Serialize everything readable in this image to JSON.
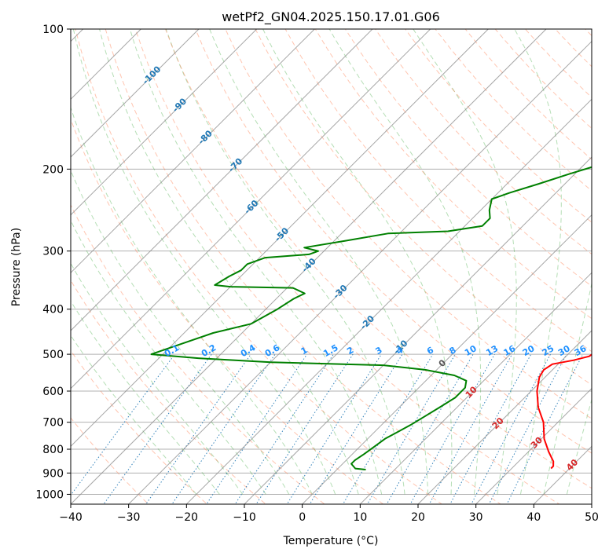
{
  "chart_data": {
    "type": "line",
    "subtype": "skew-t-log-p",
    "title": "wetPf2_GN04.2025.150.17.01.G06",
    "xlabel": "Temperature (°C)",
    "ylabel": "Pressure (hPa)",
    "xlim": [
      -40,
      50
    ],
    "ylim": [
      1050,
      100
    ],
    "y_scale": "log",
    "x_ticks": [
      -40,
      -30,
      -20,
      -10,
      0,
      10,
      20,
      30,
      40,
      50
    ],
    "y_ticks": [
      100,
      200,
      300,
      400,
      500,
      600,
      700,
      800,
      900,
      1000
    ],
    "grid": true,
    "colors": {
      "temperature": "#ff0000",
      "dewpoint": "#008000",
      "isotherm": "#888888",
      "dry_adiabat": "#ff7f50",
      "moist_adiabat": "#2ca02c",
      "mixing_ratio": "#1f77b4",
      "isotherm_label_below": "#1f77b4",
      "isotherm_label_zero": "#555555",
      "isotherm_label_above": "#d62728",
      "mixing_ratio_label": "#1e90ff"
    },
    "series": [
      {
        "name": "",
        "role": "temperature",
        "points": [
          [
            36.8,
            880
          ],
          [
            36.8,
            870
          ],
          [
            36.0,
            850
          ],
          [
            33.5,
            810
          ],
          [
            30.5,
            760
          ],
          [
            27.5,
            700
          ],
          [
            24.0,
            650
          ],
          [
            21.0,
            600
          ],
          [
            19.0,
            560
          ],
          [
            18.5,
            540
          ],
          [
            19.0,
            525
          ],
          [
            22.0,
            515
          ],
          [
            24.0,
            505
          ],
          [
            24.5,
            490
          ],
          [
            24.8,
            470
          ],
          [
            24.5,
            450
          ],
          [
            24.0,
            430
          ],
          [
            22.0,
            400
          ],
          [
            20.0,
            375
          ],
          [
            19.0,
            360
          ],
          [
            18.0,
            340
          ],
          [
            16.0,
            320
          ],
          [
            15.0,
            300
          ],
          [
            14.0,
            280
          ],
          [
            12.0,
            255
          ],
          [
            10.5,
            230
          ],
          [
            9.0,
            210
          ],
          [
            8.0,
            200
          ],
          [
            6.5,
            180
          ],
          [
            5.5,
            165
          ],
          [
            4.0,
            145
          ],
          [
            2.0,
            130
          ],
          [
            1.0,
            115
          ],
          [
            1.5,
            108
          ],
          [
            3.0,
            100
          ]
        ]
      },
      {
        "name": "",
        "role": "dewpoint",
        "points": [
          [
            5.0,
            885
          ],
          [
            3.0,
            880
          ],
          [
            1.5,
            860
          ],
          [
            1.5,
            845
          ],
          [
            2.0,
            820
          ],
          [
            2.5,
            790
          ],
          [
            3.0,
            760
          ],
          [
            5.0,
            710
          ],
          [
            6.0,
            680
          ],
          [
            7.0,
            650
          ],
          [
            8.0,
            620
          ],
          [
            8.0,
            590
          ],
          [
            7.0,
            570
          ],
          [
            4.0,
            555
          ],
          [
            -2.0,
            540
          ],
          [
            -10.0,
            528
          ],
          [
            -30.0,
            520
          ],
          [
            -43.0,
            510
          ],
          [
            -52.0,
            500
          ],
          [
            -45.0,
            450
          ],
          [
            -40.0,
            430
          ],
          [
            -38.0,
            400
          ],
          [
            -37.0,
            380
          ],
          [
            -36.0,
            370
          ],
          [
            -39.0,
            360
          ],
          [
            -50.0,
            358
          ],
          [
            -53.0,
            355
          ],
          [
            -52.0,
            340
          ],
          [
            -51.0,
            330
          ],
          [
            -51.0,
            320
          ],
          [
            -49.0,
            310
          ],
          [
            -42.0,
            305
          ],
          [
            -41.0,
            300
          ],
          [
            -44.0,
            295
          ],
          [
            -38.0,
            285
          ],
          [
            -32.0,
            275
          ],
          [
            -22.0,
            272
          ],
          [
            -17.0,
            265
          ],
          [
            -17.0,
            255
          ],
          [
            -18.5,
            245
          ],
          [
            -20.0,
            232
          ],
          [
            -18.0,
            225
          ],
          [
            -14.5,
            215
          ],
          [
            -11.0,
            205
          ],
          [
            -7.0,
            195
          ],
          [
            -3.0,
            185
          ],
          [
            0.0,
            175
          ],
          [
            -1.5,
            160
          ],
          [
            -3.5,
            145
          ],
          [
            -5.0,
            130
          ],
          [
            -6.0,
            120
          ],
          [
            -8.5,
            110
          ],
          [
            -8.0,
            105
          ],
          [
            -7.0,
            100
          ]
        ]
      }
    ],
    "isotherm_labels_mid": [
      -100,
      -90,
      -80,
      -70,
      -60,
      -50,
      -40,
      -30,
      -20,
      -10
    ],
    "isotherm_labels_low": [
      0,
      10,
      20,
      30,
      40
    ],
    "mixing_ratio_labels": [
      "0.1",
      "0.2",
      "0.4",
      "0.6",
      "1",
      "1.5",
      "2",
      "3",
      "4",
      "6",
      "8",
      "10",
      "13",
      "16",
      "20",
      "25",
      "30",
      "36"
    ],
    "mixing_ratio_values": [
      0.1,
      0.2,
      0.4,
      0.6,
      1,
      1.5,
      2,
      3,
      4,
      6,
      8,
      10,
      13,
      16,
      20,
      25,
      30,
      36
    ]
  }
}
